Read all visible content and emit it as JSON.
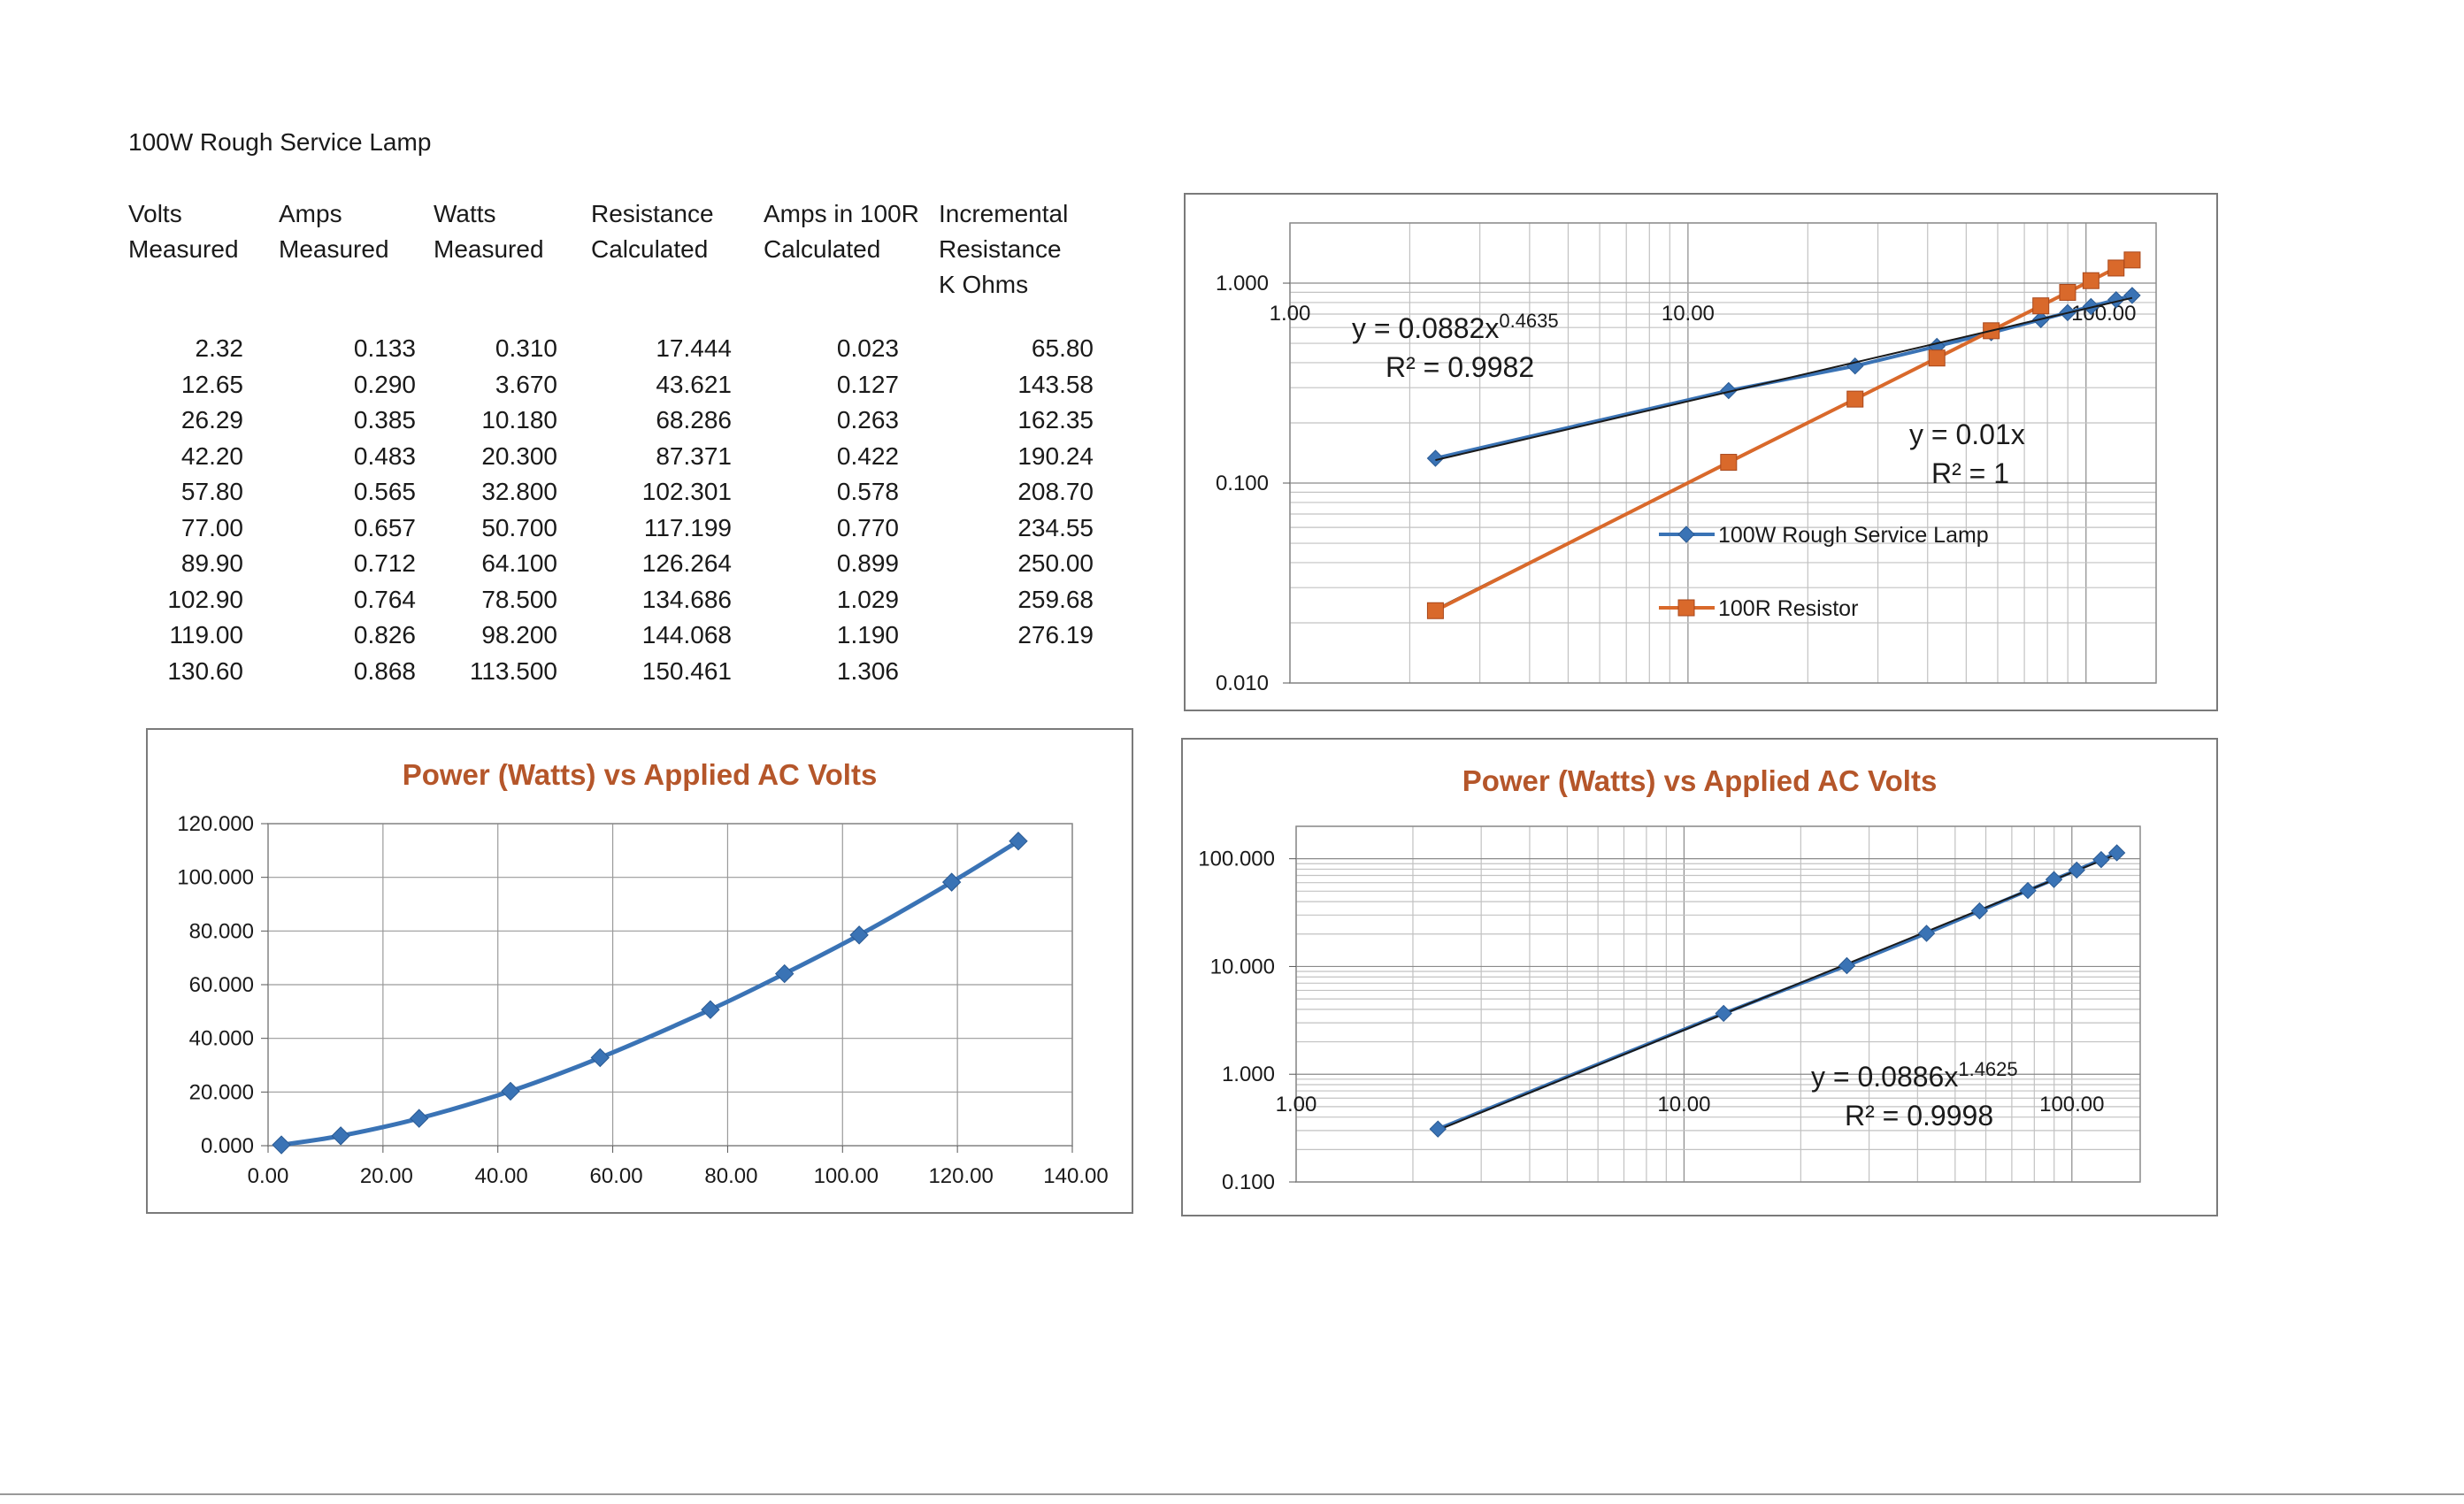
{
  "doc_title": "100W Rough Service Lamp",
  "table": {
    "headers": [
      [
        "Volts",
        "Measured",
        ""
      ],
      [
        "Amps",
        "Measured",
        ""
      ],
      [
        "Watts",
        "Measured",
        ""
      ],
      [
        "Resistance",
        "Calculated",
        ""
      ],
      [
        "Amps in 100R",
        "Calculated",
        ""
      ],
      [
        "Incremental",
        "Resistance",
        "K Ohms"
      ]
    ],
    "rows": [
      [
        "2.32",
        "0.133",
        "0.310",
        "17.444",
        "0.023",
        "65.80"
      ],
      [
        "12.65",
        "0.290",
        "3.670",
        "43.621",
        "0.127",
        "143.58"
      ],
      [
        "26.29",
        "0.385",
        "10.180",
        "68.286",
        "0.263",
        "162.35"
      ],
      [
        "42.20",
        "0.483",
        "20.300",
        "87.371",
        "0.422",
        "190.24"
      ],
      [
        "57.80",
        "0.565",
        "32.800",
        "102.301",
        "0.578",
        "208.70"
      ],
      [
        "77.00",
        "0.657",
        "50.700",
        "117.199",
        "0.770",
        "234.55"
      ],
      [
        "89.90",
        "0.712",
        "64.100",
        "126.264",
        "0.899",
        "250.00"
      ],
      [
        "102.90",
        "0.764",
        "78.500",
        "134.686",
        "1.029",
        "259.68"
      ],
      [
        "119.00",
        "0.826",
        "98.200",
        "144.068",
        "1.190",
        "276.19"
      ],
      [
        "130.60",
        "0.868",
        "113.500",
        "150.461",
        "1.306",
        ""
      ]
    ]
  },
  "chart_data": [
    {
      "id": "current-vs-volts-log",
      "type": "scatter",
      "title": "",
      "x_scale": "log",
      "y_scale": "log",
      "xlim": [
        1,
        150
      ],
      "ylim": [
        0.01,
        2
      ],
      "x_tick_labels": [
        "1.00",
        "10.00",
        "100.00"
      ],
      "y_tick_labels": [
        "0.010",
        "0.100",
        "1.000"
      ],
      "grid": true,
      "legend_position": "center-right",
      "series": [
        {
          "name": "100W Rough Service Lamp",
          "color": "#3a73b5",
          "marker": "diamond",
          "x": [
            2.32,
            12.65,
            26.29,
            42.2,
            57.8,
            77.0,
            89.9,
            102.9,
            119.0,
            130.6
          ],
          "y": [
            0.133,
            0.29,
            0.385,
            0.483,
            0.565,
            0.657,
            0.712,
            0.764,
            0.826,
            0.868
          ]
        },
        {
          "name": "100R Resistor",
          "color": "#d9692b",
          "marker": "square",
          "x": [
            2.32,
            12.65,
            26.29,
            42.2,
            57.8,
            77.0,
            89.9,
            102.9,
            119.0,
            130.6
          ],
          "y": [
            0.023,
            0.127,
            0.263,
            0.422,
            0.578,
            0.77,
            0.899,
            1.029,
            1.19,
            1.306
          ]
        }
      ],
      "trendlines": [
        {
          "series": "100W Rough Service Lamp",
          "type": "power",
          "a": 0.0882,
          "b": 0.4635
        },
        {
          "series": "100R Resistor",
          "type": "linear",
          "a": 0.01,
          "b": 1
        }
      ],
      "annotations": {
        "eq1": {
          "base": "y = 0.0882x",
          "sup": "0.4635"
        },
        "r1": "R² = 0.9982",
        "eq2": "y = 0.01x",
        "r2": "R² = 1"
      }
    },
    {
      "id": "power-vs-volts-linear",
      "type": "line",
      "title": "Power (Watts) vs Applied AC Volts",
      "xlim": [
        0,
        140
      ],
      "ylim": [
        0,
        120
      ],
      "x_tick_labels": [
        "0.00",
        "20.00",
        "40.00",
        "60.00",
        "80.00",
        "100.00",
        "120.00",
        "140.00"
      ],
      "y_tick_labels": [
        "0.000",
        "20.000",
        "40.000",
        "60.000",
        "80.000",
        "100.000",
        "120.000"
      ],
      "grid": true,
      "series": [
        {
          "name": "",
          "color": "#3a73b5",
          "marker": "diamond",
          "x": [
            2.32,
            12.65,
            26.29,
            42.2,
            57.8,
            77.0,
            89.9,
            102.9,
            119.0,
            130.6
          ],
          "y": [
            0.31,
            3.67,
            10.18,
            20.3,
            32.8,
            50.7,
            64.1,
            78.5,
            98.2,
            113.5
          ]
        }
      ]
    },
    {
      "id": "power-vs-volts-log",
      "type": "scatter",
      "title": "Power (Watts) vs Applied AC Volts",
      "x_scale": "log",
      "y_scale": "log",
      "xlim": [
        1,
        150
      ],
      "ylim": [
        0.1,
        200
      ],
      "x_tick_labels": [
        "1.00",
        "10.00",
        "100.00"
      ],
      "y_tick_labels": [
        "0.100",
        "1.000",
        "10.000",
        "100.000"
      ],
      "grid": true,
      "series": [
        {
          "name": "",
          "color": "#3a73b5",
          "marker": "diamond",
          "x": [
            2.32,
            12.65,
            26.29,
            42.2,
            57.8,
            77.0,
            89.9,
            102.9,
            119.0,
            130.6
          ],
          "y": [
            0.31,
            3.67,
            10.18,
            20.3,
            32.8,
            50.7,
            64.1,
            78.5,
            98.2,
            113.5
          ]
        }
      ],
      "trendlines": [
        {
          "type": "power",
          "a": 0.0886,
          "b": 1.4625
        }
      ],
      "annotations": {
        "eq1": {
          "base": "y = 0.0886x",
          "sup": "1.4625"
        },
        "r1": "R² = 0.9998"
      }
    }
  ]
}
